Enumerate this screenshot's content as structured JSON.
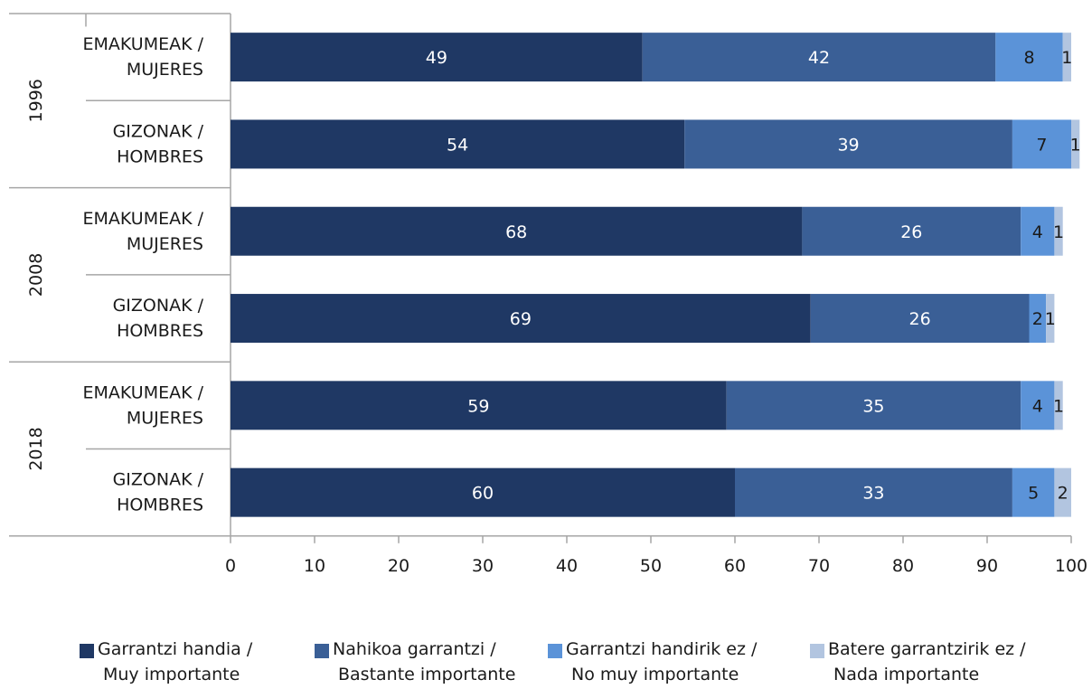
{
  "chart_data": {
    "type": "bar",
    "orientation": "horizontal",
    "stacked": true,
    "groups": [
      {
        "label": "1996",
        "rows": [
          {
            "label": [
              "EMAKUMEAK /",
              "MUJERES"
            ],
            "values": [
              49,
              42,
              8,
              1
            ]
          },
          {
            "label": [
              "GIZONAK /",
              "HOMBRES"
            ],
            "values": [
              54,
              39,
              7,
              1
            ]
          }
        ]
      },
      {
        "label": "2008",
        "rows": [
          {
            "label": [
              "EMAKUMEAK /",
              "MUJERES"
            ],
            "values": [
              68,
              26,
              4,
              1
            ]
          },
          {
            "label": [
              "GIZONAK /",
              "HOMBRES"
            ],
            "values": [
              69,
              26,
              2,
              1
            ]
          }
        ]
      },
      {
        "label": "2018",
        "rows": [
          {
            "label": [
              "EMAKUMEAK /",
              "MUJERES"
            ],
            "values": [
              59,
              35,
              4,
              1
            ]
          },
          {
            "label": [
              "GIZONAK /",
              "HOMBRES"
            ],
            "values": [
              60,
              33,
              5,
              2
            ]
          }
        ]
      }
    ],
    "series": [
      {
        "name": [
          "Garrantzi handia /",
          "Muy importante"
        ],
        "color": "#1f3864"
      },
      {
        "name": [
          "Nahikoa garrantzi /",
          "Bastante importante"
        ],
        "color": "#3a5f96"
      },
      {
        "name": [
          "Garrantzi handirik ez /",
          "No muy importante"
        ],
        "color": "#5b93d8"
      },
      {
        "name": [
          "Batere garrantzirik ez /",
          "Nada importante"
        ],
        "color": "#b2c5e0"
      }
    ],
    "xlim": [
      0,
      100
    ],
    "xticks": [
      0,
      10,
      20,
      30,
      40,
      50,
      60,
      70,
      80,
      90,
      100
    ],
    "grid": false,
    "legend_position": "bottom",
    "title": "",
    "xlabel": "",
    "ylabel": ""
  }
}
